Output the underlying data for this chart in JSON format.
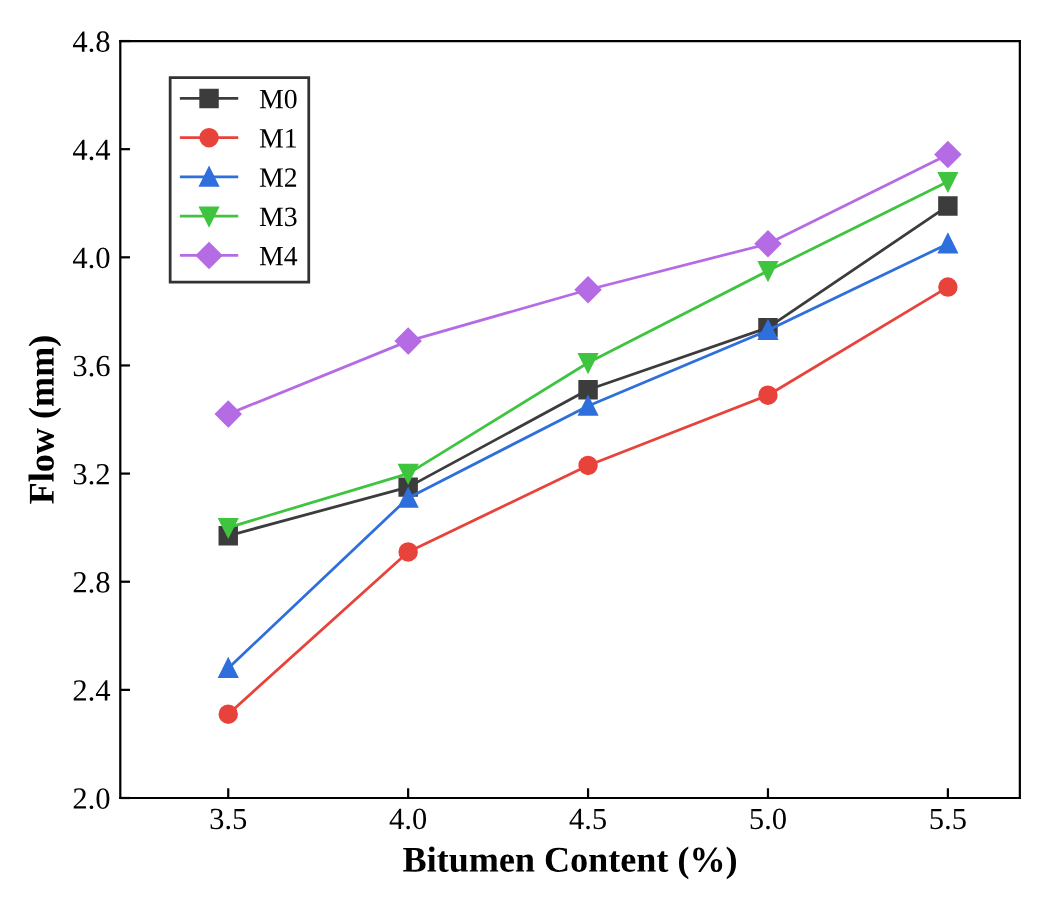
{
  "chart_data": {
    "type": "line",
    "xlabel": "Bitumen Content (%)",
    "ylabel": "Flow (mm)",
    "x": [
      3.5,
      4.0,
      4.5,
      5.0,
      5.5
    ],
    "series": [
      {
        "name": "M0",
        "color": "#3c3c3c",
        "marker": "square",
        "values": [
          2.97,
          3.15,
          3.51,
          3.74,
          4.19
        ]
      },
      {
        "name": "M1",
        "color": "#e8433b",
        "marker": "circle",
        "values": [
          2.31,
          2.91,
          3.23,
          3.49,
          3.89
        ]
      },
      {
        "name": "M2",
        "color": "#2e6fdc",
        "marker": "triangle",
        "values": [
          2.48,
          3.11,
          3.45,
          3.73,
          4.05
        ]
      },
      {
        "name": "M3",
        "color": "#3fc43f",
        "marker": "triangle-down",
        "values": [
          3.0,
          3.2,
          3.61,
          3.95,
          4.28
        ]
      },
      {
        "name": "M4",
        "color": "#b56be3",
        "marker": "diamond",
        "values": [
          3.42,
          3.69,
          3.88,
          4.05,
          4.38
        ]
      }
    ],
    "xlim": [
      3.2,
      5.7
    ],
    "xticks": [
      {
        "value": 3.5,
        "label": "3.5"
      },
      {
        "value": 4.0,
        "label": "4.0"
      },
      {
        "value": 4.5,
        "label": "4.5"
      },
      {
        "value": 5.0,
        "label": "5.0"
      },
      {
        "value": 5.5,
        "label": "5.5"
      }
    ],
    "ylim": [
      2.0,
      4.8
    ],
    "yticks": [
      {
        "value": 2.0,
        "label": "2.0"
      },
      {
        "value": 2.4,
        "label": "2.4"
      },
      {
        "value": 2.8,
        "label": "2.8"
      },
      {
        "value": 3.2,
        "label": "3.2"
      },
      {
        "value": 3.6,
        "label": "3.6"
      },
      {
        "value": 4.0,
        "label": "4.0"
      },
      {
        "value": 4.4,
        "label": "4.4"
      },
      {
        "value": 4.8,
        "label": "4.8"
      }
    ],
    "grid": false,
    "legend": "top left",
    "line_style": "solid"
  }
}
